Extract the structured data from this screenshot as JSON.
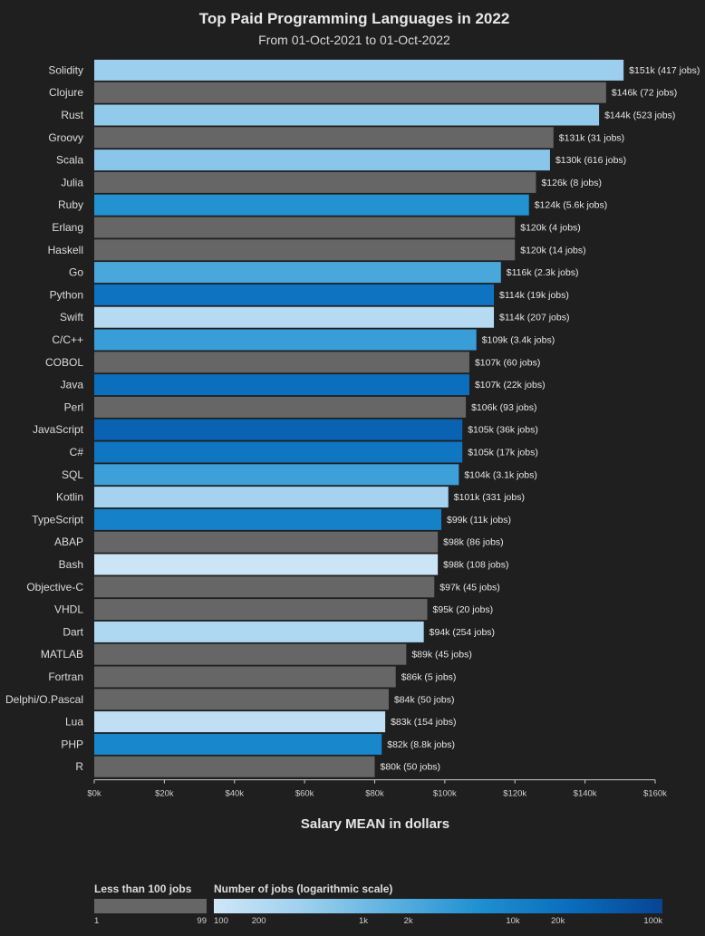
{
  "chart_data": {
    "type": "bar",
    "orientation": "horizontal",
    "title": "Top Paid Programming Languages in 2022",
    "subtitle": "From 01-Oct-2021 to 01-Oct-2022",
    "xlabel": "Salary MEAN in dollars",
    "xlim": [
      0,
      160000
    ],
    "x_ticks": [
      "$0k",
      "$20k",
      "$40k",
      "$60k",
      "$80k",
      "$100k",
      "$120k",
      "$140k",
      "$160k"
    ],
    "grid": false,
    "bars": [
      {
        "category": "Solidity",
        "value": 151000,
        "jobs": 417,
        "label": "$151k (417 jobs)"
      },
      {
        "category": "Clojure",
        "value": 146000,
        "jobs": 72,
        "label": "$146k (72 jobs)"
      },
      {
        "category": "Rust",
        "value": 144000,
        "jobs": 523,
        "label": "$144k (523 jobs)"
      },
      {
        "category": "Groovy",
        "value": 131000,
        "jobs": 31,
        "label": "$131k (31 jobs)"
      },
      {
        "category": "Scala",
        "value": 130000,
        "jobs": 616,
        "label": "$130k (616 jobs)"
      },
      {
        "category": "Julia",
        "value": 126000,
        "jobs": 8,
        "label": "$126k (8 jobs)"
      },
      {
        "category": "Ruby",
        "value": 124000,
        "jobs": 5600,
        "label": "$124k (5.6k jobs)"
      },
      {
        "category": "Erlang",
        "value": 120000,
        "jobs": 4,
        "label": "$120k (4 jobs)"
      },
      {
        "category": "Haskell",
        "value": 120000,
        "jobs": 14,
        "label": "$120k (14 jobs)"
      },
      {
        "category": "Go",
        "value": 116000,
        "jobs": 2300,
        "label": "$116k (2.3k jobs)"
      },
      {
        "category": "Python",
        "value": 114000,
        "jobs": 19000,
        "label": "$114k (19k jobs)"
      },
      {
        "category": "Swift",
        "value": 114000,
        "jobs": 207,
        "label": "$114k (207 jobs)"
      },
      {
        "category": "C/C++",
        "value": 109000,
        "jobs": 3400,
        "label": "$109k (3.4k jobs)"
      },
      {
        "category": "COBOL",
        "value": 107000,
        "jobs": 60,
        "label": "$107k (60 jobs)"
      },
      {
        "category": "Java",
        "value": 107000,
        "jobs": 22000,
        "label": "$107k (22k jobs)"
      },
      {
        "category": "Perl",
        "value": 106000,
        "jobs": 93,
        "label": "$106k (93 jobs)"
      },
      {
        "category": "JavaScript",
        "value": 105000,
        "jobs": 36000,
        "label": "$105k (36k jobs)"
      },
      {
        "category": "C#",
        "value": 105000,
        "jobs": 17000,
        "label": "$105k (17k jobs)"
      },
      {
        "category": "SQL",
        "value": 104000,
        "jobs": 3100,
        "label": "$104k (3.1k jobs)"
      },
      {
        "category": "Kotlin",
        "value": 101000,
        "jobs": 331,
        "label": "$101k (331 jobs)"
      },
      {
        "category": "TypeScript",
        "value": 99000,
        "jobs": 11000,
        "label": "$99k (11k jobs)"
      },
      {
        "category": "ABAP",
        "value": 98000,
        "jobs": 86,
        "label": "$98k (86 jobs)"
      },
      {
        "category": "Bash",
        "value": 98000,
        "jobs": 108,
        "label": "$98k (108 jobs)"
      },
      {
        "category": "Objective-C",
        "value": 97000,
        "jobs": 45,
        "label": "$97k (45 jobs)"
      },
      {
        "category": "VHDL",
        "value": 95000,
        "jobs": 20,
        "label": "$95k (20 jobs)"
      },
      {
        "category": "Dart",
        "value": 94000,
        "jobs": 254,
        "label": "$94k (254 jobs)"
      },
      {
        "category": "MATLAB",
        "value": 89000,
        "jobs": 45,
        "label": "$89k (45 jobs)"
      },
      {
        "category": "Fortran",
        "value": 86000,
        "jobs": 5,
        "label": "$86k (5 jobs)"
      },
      {
        "category": "Delphi/O.Pascal",
        "value": 84000,
        "jobs": 50,
        "label": "$84k (50 jobs)"
      },
      {
        "category": "Lua",
        "value": 83000,
        "jobs": 154,
        "label": "$83k (154 jobs)"
      },
      {
        "category": "PHP",
        "value": 82000,
        "jobs": 8800,
        "label": "$82k (8.8k jobs)"
      },
      {
        "category": "R",
        "value": 80000,
        "jobs": 50,
        "label": "$80k (50 jobs)"
      }
    ],
    "legend": {
      "gray": {
        "title": "Less than 100 jobs",
        "min_label": "1",
        "max_label": "99",
        "color": "#666666"
      },
      "scale": {
        "title": "Number of jobs (logarithmic scale)",
        "scale_type": "log",
        "domain": [
          100,
          100000
        ],
        "ticks": [
          {
            "value": 100,
            "label": "100"
          },
          {
            "value": 200,
            "label": "200"
          },
          {
            "value": 1000,
            "label": "1k"
          },
          {
            "value": 2000,
            "label": "2k"
          },
          {
            "value": 10000,
            "label": "10k"
          },
          {
            "value": 20000,
            "label": "20k"
          },
          {
            "value": 100000,
            "label": "100k"
          }
        ],
        "colors": [
          "#cfe6f7",
          "#9ed0ee",
          "#5bb0e0",
          "#1d8fd0",
          "#0a6cbc",
          "#064594"
        ]
      }
    }
  },
  "colors": {
    "background": "#1f1f1f",
    "text": "#e6e6e6",
    "gray_bar": "#666666",
    "axis": "#cccccc"
  }
}
